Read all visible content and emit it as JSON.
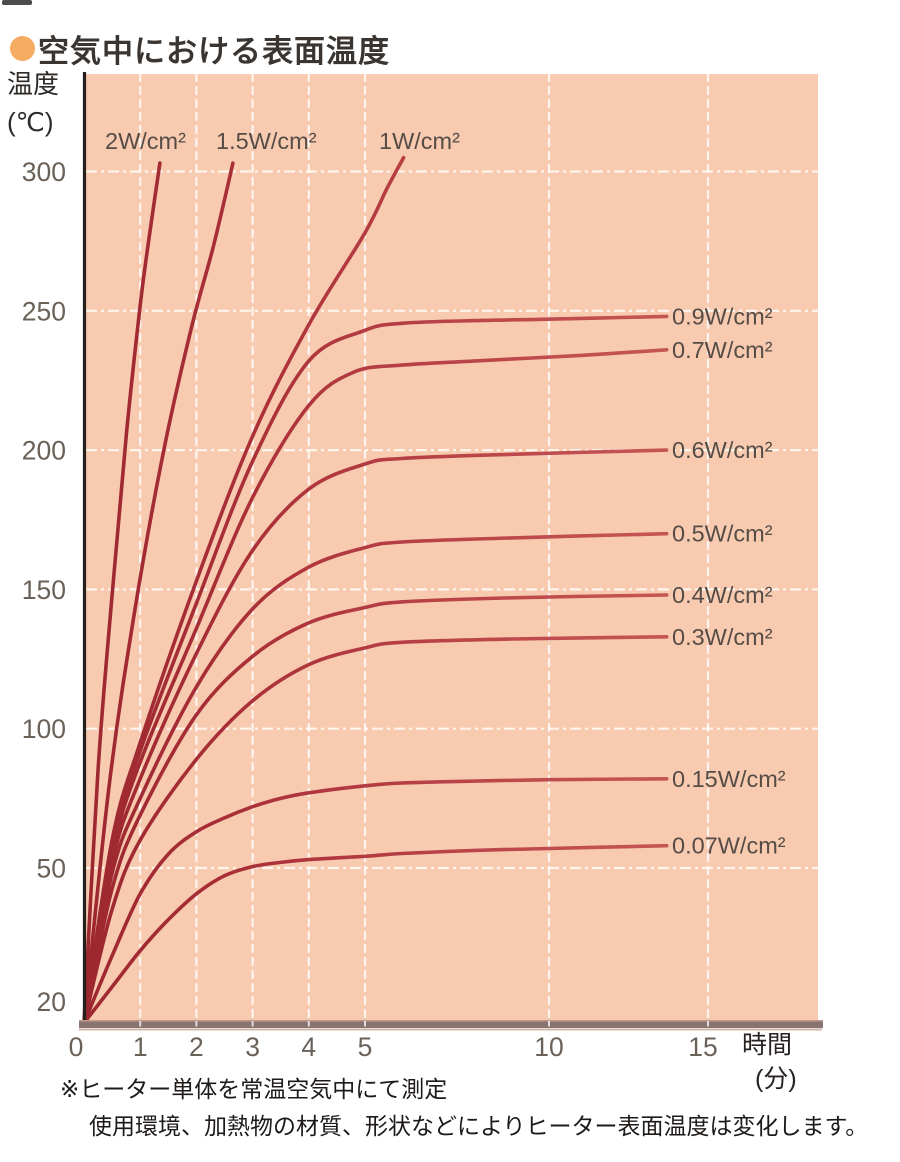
{
  "header": {
    "title": "空気中における表面温度",
    "bullet_icon": "orange-circle"
  },
  "chart_data": {
    "type": "line",
    "title": "空気中における表面温度",
    "xlabel": "時間",
    "xlabel_unit": "(分)",
    "ylabel": "温度",
    "ylabel_unit": "(℃)",
    "xlim": [
      0,
      15.5
    ],
    "ylim": [
      20,
      310
    ],
    "grid": true,
    "x_ticks": [
      0,
      1,
      2,
      3,
      4,
      5,
      10,
      15
    ],
    "x_gridlines": [
      1,
      2,
      3,
      4,
      5,
      10,
      15
    ],
    "y_ticks": [
      300,
      250,
      200,
      150,
      100,
      50,
      20
    ],
    "y_gridlines": [
      300,
      250,
      200,
      150,
      100,
      50
    ],
    "axis_note": "x axis compressed beyond 5 minutes; curves start at 20°C ambient",
    "series": [
      {
        "label": "2W/cm²",
        "power_w_per_cm2": 2,
        "label_side": "top",
        "points": [
          [
            0,
            20
          ],
          [
            0.25,
            85
          ],
          [
            0.5,
            148
          ],
          [
            0.75,
            205
          ],
          [
            1.0,
            252
          ],
          [
            1.15,
            275
          ],
          [
            1.35,
            303
          ]
        ]
      },
      {
        "label": "1.5W/cm²",
        "power_w_per_cm2": 1.5,
        "label_side": "top",
        "points": [
          [
            0,
            20
          ],
          [
            0.45,
            80
          ],
          [
            0.9,
            142
          ],
          [
            1.4,
            198
          ],
          [
            1.9,
            243
          ],
          [
            2.3,
            273
          ],
          [
            2.65,
            303
          ]
        ]
      },
      {
        "label": "1W/cm²",
        "power_w_per_cm2": 1,
        "label_side": "top",
        "points": [
          [
            0,
            20
          ],
          [
            0.5,
            60
          ],
          [
            1,
            95
          ],
          [
            2,
            153
          ],
          [
            3,
            205
          ],
          [
            4,
            245
          ],
          [
            5,
            278
          ],
          [
            5.6,
            294
          ],
          [
            6.05,
            305
          ]
        ]
      },
      {
        "label": "0.9W/cm²",
        "power_w_per_cm2": 0.9,
        "label_side": "right",
        "final_temp_c": 248,
        "points": [
          [
            0,
            20
          ],
          [
            0.5,
            57
          ],
          [
            1,
            92
          ],
          [
            2,
            145
          ],
          [
            3,
            196
          ],
          [
            4,
            232
          ],
          [
            5,
            243
          ],
          [
            6,
            245.5
          ],
          [
            8,
            246.5
          ],
          [
            10,
            247
          ],
          [
            13.7,
            248
          ]
        ]
      },
      {
        "label": "0.7W/cm²",
        "power_w_per_cm2": 0.7,
        "label_side": "right",
        "final_temp_c": 236,
        "points": [
          [
            0,
            20
          ],
          [
            0.5,
            55
          ],
          [
            1,
            88
          ],
          [
            2,
            136
          ],
          [
            3,
            183
          ],
          [
            4,
            216
          ],
          [
            4.8,
            228
          ],
          [
            6,
            230.5
          ],
          [
            8,
            232
          ],
          [
            11,
            234
          ],
          [
            13.7,
            236
          ]
        ]
      },
      {
        "label": "0.6W/cm²",
        "power_w_per_cm2": 0.6,
        "label_side": "right",
        "final_temp_c": 200,
        "points": [
          [
            0,
            20
          ],
          [
            0.5,
            52
          ],
          [
            1,
            82
          ],
          [
            2,
            127
          ],
          [
            3,
            164
          ],
          [
            4,
            186
          ],
          [
            5,
            195
          ],
          [
            6,
            197
          ],
          [
            9,
            198.5
          ],
          [
            13.7,
            200
          ]
        ]
      },
      {
        "label": "0.5W/cm²",
        "power_w_per_cm2": 0.5,
        "label_side": "right",
        "final_temp_c": 170,
        "points": [
          [
            0,
            20
          ],
          [
            0.5,
            49
          ],
          [
            1,
            75
          ],
          [
            2,
            115
          ],
          [
            3,
            143
          ],
          [
            4,
            158
          ],
          [
            5,
            165
          ],
          [
            6,
            167
          ],
          [
            9,
            168.5
          ],
          [
            13.7,
            170
          ]
        ]
      },
      {
        "label": "0.4W/cm²",
        "power_w_per_cm2": 0.4,
        "label_side": "right",
        "final_temp_c": 148,
        "points": [
          [
            0,
            20
          ],
          [
            0.5,
            46
          ],
          [
            1,
            69
          ],
          [
            2,
            105
          ],
          [
            3,
            126
          ],
          [
            4,
            138
          ],
          [
            5,
            143.5
          ],
          [
            6,
            145.5
          ],
          [
            9,
            147
          ],
          [
            13.7,
            148
          ]
        ]
      },
      {
        "label": "0.3W/cm²",
        "power_w_per_cm2": 0.3,
        "label_side": "right",
        "final_temp_c": 133,
        "points": [
          [
            0,
            20
          ],
          [
            0.5,
            42
          ],
          [
            1,
            60
          ],
          [
            2,
            89
          ],
          [
            3,
            110
          ],
          [
            4,
            123
          ],
          [
            5,
            129
          ],
          [
            6,
            131
          ],
          [
            9,
            132.2
          ],
          [
            13.7,
            133
          ]
        ]
      },
      {
        "label": "0.15W/cm²",
        "power_w_per_cm2": 0.15,
        "label_side": "right",
        "final_temp_c": 82,
        "points": [
          [
            0,
            20
          ],
          [
            0.5,
            33
          ],
          [
            1,
            45
          ],
          [
            1.5,
            55
          ],
          [
            2,
            63
          ],
          [
            2.5,
            68
          ],
          [
            3,
            72
          ],
          [
            3.5,
            75
          ],
          [
            4,
            77
          ],
          [
            5,
            79.5
          ],
          [
            6,
            80.5
          ],
          [
            8,
            81.2
          ],
          [
            10,
            81.7
          ],
          [
            13.7,
            82
          ]
        ]
      },
      {
        "label": "0.07W/cm²",
        "power_w_per_cm2": 0.07,
        "label_side": "right",
        "final_temp_c": 58,
        "points": [
          [
            0,
            20
          ],
          [
            0.5,
            27
          ],
          [
            1,
            34
          ],
          [
            1.5,
            40
          ],
          [
            2,
            45
          ],
          [
            2.5,
            48.5
          ],
          [
            3,
            50.5
          ],
          [
            3.5,
            52
          ],
          [
            4,
            53
          ],
          [
            5,
            54.2
          ],
          [
            6,
            55.2
          ],
          [
            8,
            56.3
          ],
          [
            10,
            57
          ],
          [
            13.7,
            58
          ]
        ]
      }
    ]
  },
  "footnotes": [
    "※ヒーター単体を常温空気中にて測定",
    "使用環境、加熱物の材質、形状などによりヒーター表面温度は変化します。"
  ],
  "colors": {
    "plot_bg": "#f8cbb1",
    "grid": "#fffdf7",
    "curve_dark": "#9e2830",
    "curve_mid": "#bc474a",
    "curve_light": "#cc625f",
    "axis_left": "#25201e",
    "axis_bottom": "#8a7470",
    "axis_bottom_edge": "#c09a8c",
    "axis_bottom_shadow": "#cdb6aa",
    "tick_text": "#6a6258",
    "series_label_text": "#564c46",
    "title_text": "#3a3531",
    "bullet": "#f5ab62"
  }
}
